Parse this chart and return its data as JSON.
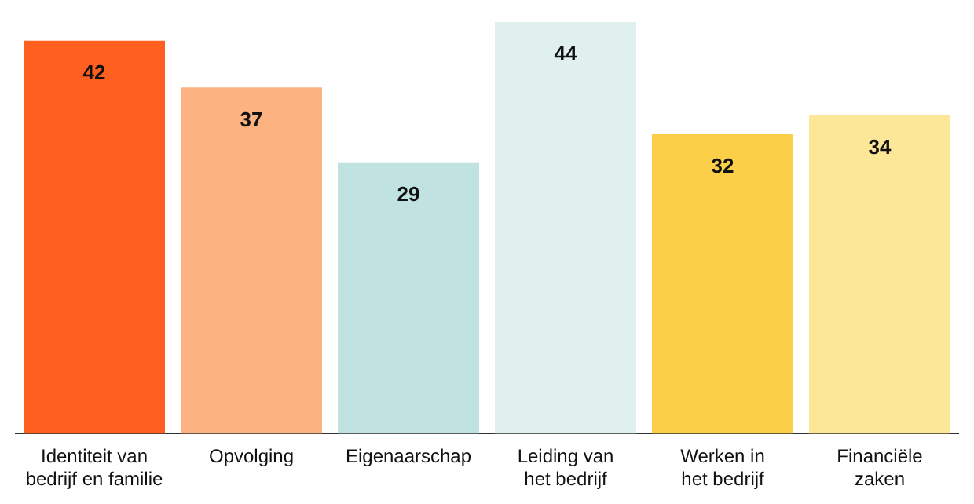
{
  "chart_data": {
    "type": "bar",
    "categories": [
      "Identiteit van\nbedrijf en familie",
      "Opvolging",
      "Eigenaarschap",
      "Leiding van\nhet bedrijf",
      "Werken in\nhet bedrijf",
      "Financiële\nzaken"
    ],
    "values": [
      42,
      37,
      29,
      44,
      32,
      34
    ],
    "colors": [
      "#ff5f1f",
      "#fdb282",
      "#c0e3e1",
      "#dff0ef",
      "#fbd048",
      "#fce799"
    ],
    "data_labels": true,
    "grid": false,
    "legend": false
  }
}
